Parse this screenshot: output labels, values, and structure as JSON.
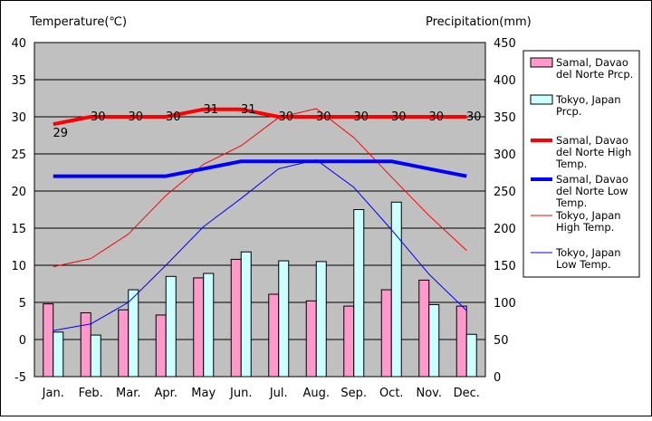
{
  "chart_data": {
    "type": "bar",
    "title": "",
    "left_axis_title": "Temperature(℃)",
    "right_axis_title": "Precipitation(mm)",
    "categories": [
      "Jan.",
      "Feb.",
      "Mar.",
      "Apr.",
      "May",
      "Jun.",
      "Jul.",
      "Aug.",
      "Sep.",
      "Oct.",
      "Nov.",
      "Dec."
    ],
    "left_ylim": [
      -5,
      40
    ],
    "left_ticks": [
      "40",
      "35",
      "30",
      "25",
      "20",
      "15",
      "10",
      "5",
      "0",
      "-5"
    ],
    "right_ylim": [
      0,
      450
    ],
    "right_ticks": [
      "450",
      "400",
      "350",
      "300",
      "250",
      "200",
      "150",
      "100",
      "50",
      "0"
    ],
    "grid": true,
    "plot_background": "#c0c0c0",
    "legend_position": "right",
    "bar_series": [
      {
        "name": "Samal, Davao del Norte Prcp.",
        "legend_lines": [
          "Samal, Davao",
          "del Norte Prcp."
        ],
        "color": "#ff99cc",
        "values": [
          98,
          86,
          90,
          83,
          133,
          158,
          111,
          102,
          95,
          117,
          130,
          95
        ]
      },
      {
        "name": "Tokyo, Japan Prcp.",
        "legend_lines": [
          "Tokyo, Japan",
          "Prcp."
        ],
        "color": "#ccffff",
        "values": [
          60,
          56,
          117,
          135,
          139,
          168,
          156,
          155,
          225,
          235,
          97,
          57
        ]
      }
    ],
    "line_series": [
      {
        "name": "Samal, Davao del Norte High Temp.",
        "legend_lines": [
          "Samal, Davao",
          "del Norte High",
          "Temp."
        ],
        "color": "#ff0000",
        "width": 4,
        "values": [
          29,
          30,
          30,
          30,
          31,
          31,
          30,
          30,
          30,
          30,
          30,
          30
        ],
        "labels": [
          "29",
          "30",
          "30",
          "30",
          "31",
          "31",
          "30",
          "30",
          "30",
          "30",
          "30",
          "30"
        ]
      },
      {
        "name": "Samal, Davao del Norte Low Temp.",
        "legend_lines": [
          "Samal, Davao",
          "del Norte Low",
          "Temp."
        ],
        "color": "#0000ff",
        "width": 4,
        "values": [
          22,
          22,
          22,
          22,
          23,
          24,
          24,
          24,
          24,
          24,
          23,
          22
        ]
      },
      {
        "name": "Tokyo, Japan High Temp.",
        "legend_lines": [
          "Tokyo, Japan",
          "High Temp."
        ],
        "color": "#ff0000",
        "width": 1,
        "values": [
          9.8,
          10.9,
          14.2,
          19.4,
          23.6,
          26.1,
          29.9,
          31.1,
          27.2,
          21.9,
          16.7,
          12.0
        ]
      },
      {
        "name": "Tokyo, Japan Low Temp.",
        "legend_lines": [
          "Tokyo, Japan",
          "Low Temp."
        ],
        "color": "#0000ff",
        "width": 1,
        "values": [
          1.2,
          2.1,
          5.0,
          10.0,
          15.2,
          19.0,
          23.0,
          24.2,
          20.5,
          14.8,
          8.8,
          3.9
        ]
      }
    ]
  }
}
